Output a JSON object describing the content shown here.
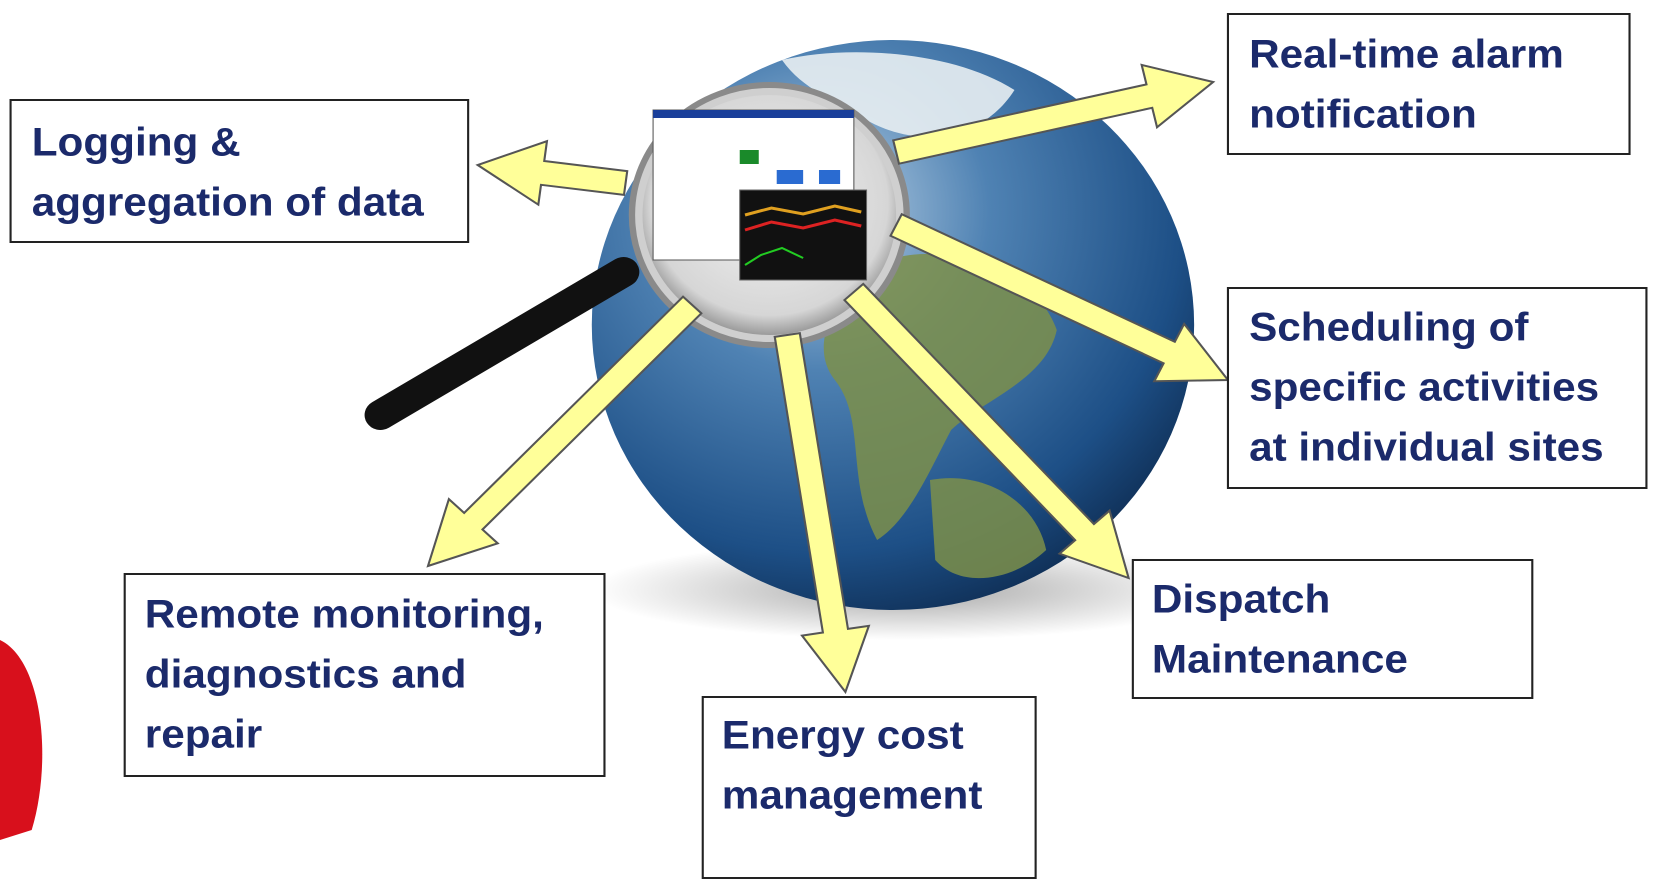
{
  "nodes": [
    {
      "lines": [
        "Logging &",
        "aggregation of data"
      ]
    },
    {
      "lines": [
        "Real-time alarm",
        "notification"
      ]
    },
    {
      "lines": [
        "Scheduling of",
        "specific activities",
        "at individual sites"
      ]
    },
    {
      "lines": [
        "Dispatch",
        "Maintenance"
      ]
    },
    {
      "lines": [
        "Energy cost",
        "management"
      ]
    },
    {
      "lines": [
        "Remote monitoring,",
        "diagnostics and",
        "repair"
      ]
    }
  ]
}
